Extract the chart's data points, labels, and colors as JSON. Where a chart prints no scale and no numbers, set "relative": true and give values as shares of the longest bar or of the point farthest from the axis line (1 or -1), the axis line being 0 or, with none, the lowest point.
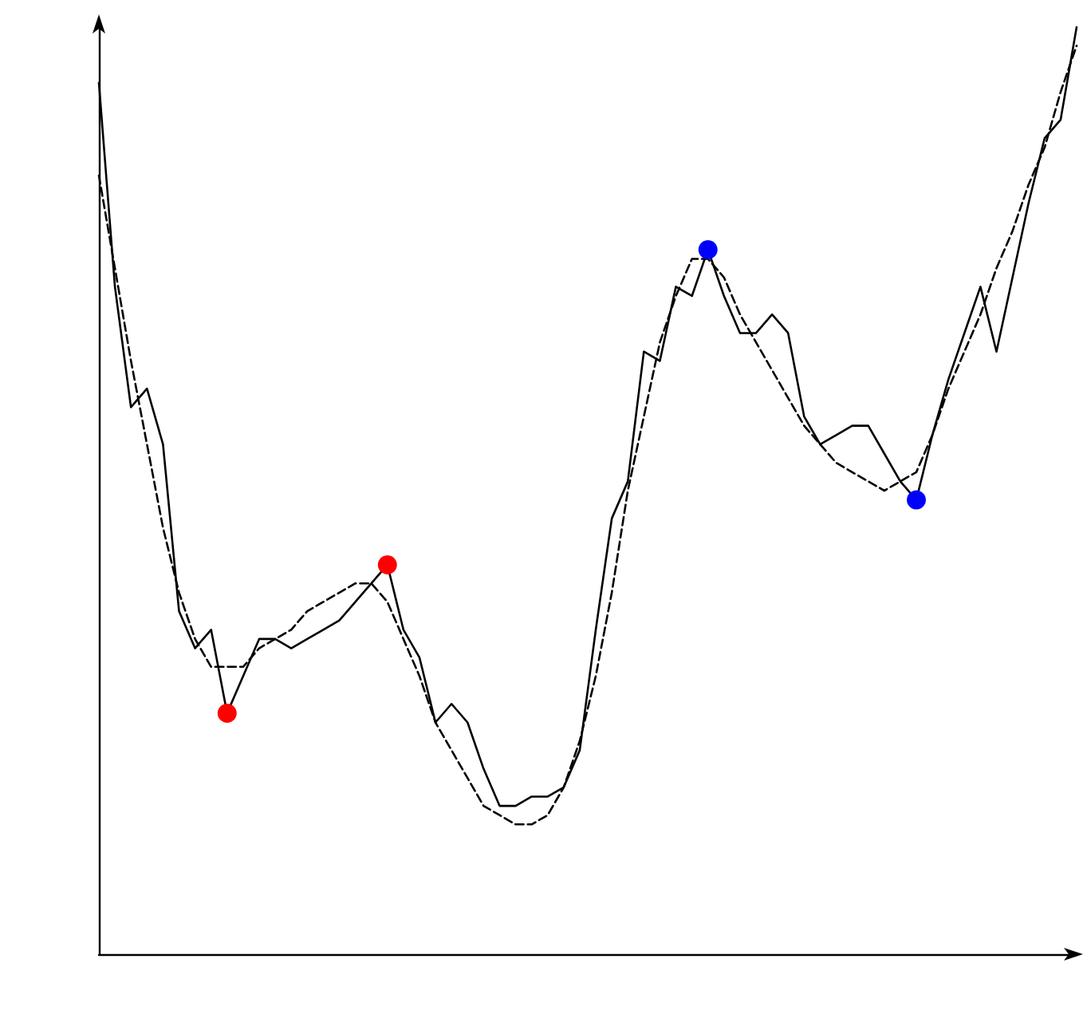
{
  "chart_data": {
    "type": "line",
    "relative": true,
    "grid": false,
    "categories": [
      null,
      null,
      null,
      null,
      null,
      null,
      null,
      null,
      null,
      null,
      null,
      null,
      null,
      null,
      null,
      null,
      null,
      null,
      null,
      null,
      null,
      null,
      null,
      null,
      null,
      null,
      null,
      null,
      null,
      null,
      null,
      null,
      null,
      null,
      null,
      null,
      null,
      null,
      null,
      null,
      null,
      null,
      null,
      null,
      null,
      null,
      null,
      null,
      null,
      null,
      null,
      null,
      null,
      null,
      null,
      null,
      null,
      null,
      null,
      null,
      null,
      null
    ],
    "series": [
      {
        "color": "#000000",
        "line_style": "solid",
        "marker": "none",
        "values": [
          0.94,
          0.72,
          0.59,
          0.61,
          0.55,
          0.37,
          0.33,
          0.35,
          0.26,
          0.3,
          0.34,
          0.34,
          0.33,
          0.34,
          0.35,
          0.36,
          0.38,
          0.4,
          0.42,
          0.35,
          0.32,
          0.25,
          0.27,
          0.25,
          0.2,
          0.16,
          0.16,
          0.17,
          0.17,
          0.18,
          0.22,
          0.35,
          0.47,
          0.51,
          0.65,
          0.64,
          0.72,
          0.71,
          0.76,
          0.71,
          0.67,
          0.67,
          0.69,
          0.67,
          0.58,
          0.55,
          0.56,
          0.57,
          0.57,
          0.54,
          0.51,
          0.49,
          0.56,
          0.62,
          0.67,
          0.72,
          0.65,
          0.73,
          0.81,
          0.88,
          0.9,
          1.0
        ],
        "colors": [
          null,
          null,
          null,
          null,
          null,
          null,
          null,
          null,
          "#ff0000",
          null,
          null,
          null,
          null,
          null,
          null,
          null,
          null,
          null,
          "#ff0000",
          null,
          null,
          null,
          null,
          null,
          null,
          null,
          null,
          null,
          null,
          null,
          null,
          null,
          null,
          null,
          null,
          null,
          null,
          null,
          "#0000ff",
          null,
          null,
          null,
          null,
          null,
          null,
          null,
          null,
          null,
          null,
          null,
          null,
          "#0000ff",
          null,
          null,
          null,
          null,
          null,
          null,
          null,
          null,
          null,
          null
        ]
      },
      {
        "color": "#000000",
        "line_style": "dashed",
        "marker": "none",
        "values": [
          0.84,
          0.74,
          0.64,
          0.55,
          0.46,
          0.39,
          0.34,
          0.31,
          0.31,
          0.31,
          0.33,
          0.34,
          0.35,
          0.37,
          0.38,
          0.39,
          0.4,
          0.4,
          0.38,
          0.34,
          0.3,
          0.25,
          0.22,
          0.19,
          0.16,
          0.15,
          0.14,
          0.14,
          0.15,
          0.18,
          0.23,
          0.3,
          0.39,
          0.5,
          0.58,
          0.66,
          0.71,
          0.75,
          0.75,
          0.73,
          0.69,
          0.66,
          0.63,
          0.6,
          0.57,
          0.55,
          0.53,
          0.52,
          0.51,
          0.5,
          0.51,
          0.52,
          0.56,
          0.61,
          0.65,
          0.69,
          0.74,
          0.78,
          0.83,
          0.87,
          0.93,
          0.98
        ]
      }
    ]
  }
}
